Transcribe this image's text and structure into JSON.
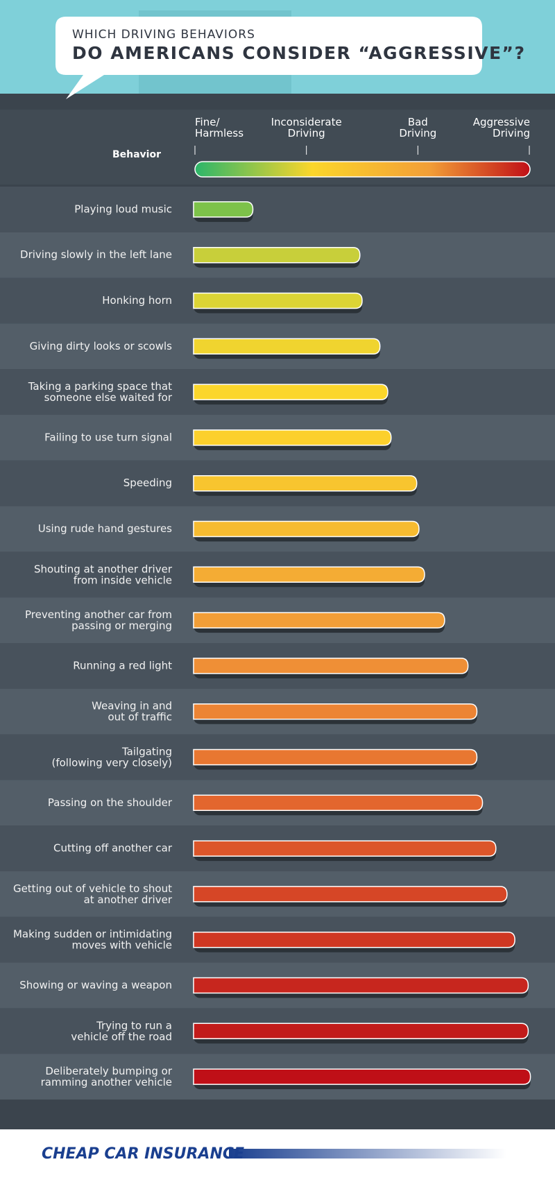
{
  "chart_data": {
    "type": "bar",
    "orientation": "horizontal",
    "subtitle": "WHICH DRIVING BEHAVIORS",
    "title": "DO AMERICANS CONSIDER “AGGRESSIVE”?",
    "category_header": "Behavior",
    "categories": [
      "Playing loud music",
      "Driving slowly in the left lane",
      "Honking horn",
      "Giving dirty looks or scowls",
      "Taking a parking space that\nsomeone else waited for",
      "Failing to use turn signal",
      "Speeding",
      "Using rude hand gestures",
      "Shouting at another driver\nfrom inside vehicle",
      "Preventing another car from\npassing or merging",
      "Running a red light",
      "Weaving in and\nout of traffic",
      "Tailgating\n(following very closely)",
      "Passing on the shoulder",
      "Cutting off another car",
      "Getting out of vehicle to shout\nat another driver",
      "Making sudden or intimidating\nmoves with vehicle",
      "Showing or waving a weapon",
      "Trying to run a\nvehicle off the road",
      "Deliberately bumping or\nramming another vehicle"
    ],
    "values": [
      1.52,
      2.48,
      2.5,
      2.66,
      2.73,
      2.76,
      2.99,
      3.01,
      3.06,
      3.24,
      3.45,
      3.53,
      3.53,
      3.58,
      3.7,
      3.8,
      3.87,
      3.99,
      3.99,
      4.01
    ],
    "colors": [
      "#7dc24a",
      "#c8cf3a",
      "#dcd435",
      "#f0d42f",
      "#fbd62b",
      "#fcd02c",
      "#f8c52f",
      "#f6bb31",
      "#f4ac34",
      "#f29e37",
      "#ef8f36",
      "#ec8434",
      "#e87731",
      "#e3662e",
      "#dc562a",
      "#d64626",
      "#cf3722",
      "#c7261e",
      "#c21b1a",
      "#bf0f17"
    ],
    "xlim": [
      1,
      4
    ],
    "xticks": [
      {
        "value": 1,
        "label": "Fine/\nHarmless"
      },
      {
        "value": 2,
        "label": "Inconsiderate\nDriving"
      },
      {
        "value": 3,
        "label": "Bad\nDriving"
      },
      {
        "value": 4,
        "label": "Aggressive\nDriving"
      }
    ]
  },
  "footer": {
    "logo": "CHEAP CAR INSURANCE"
  }
}
